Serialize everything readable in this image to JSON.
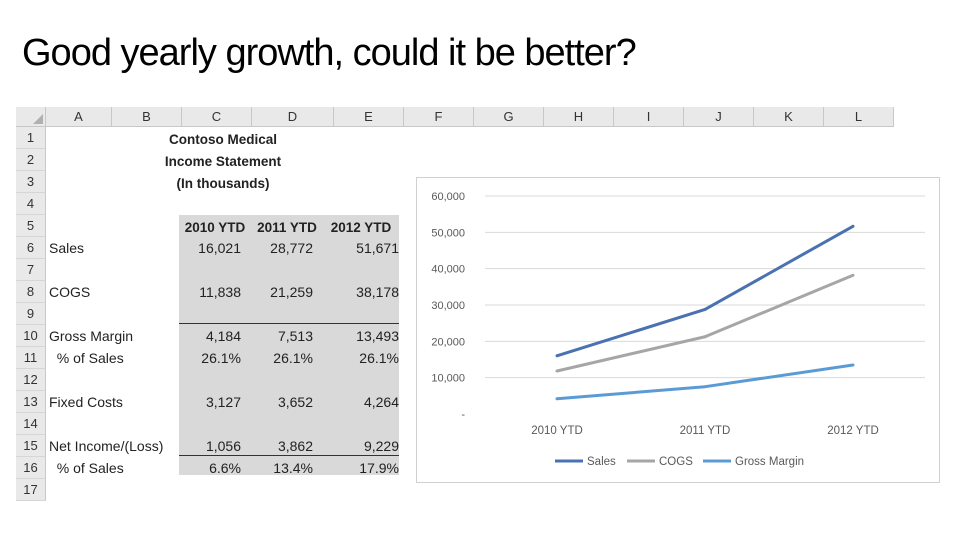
{
  "slide": {
    "title": "Good yearly growth, could it be better?"
  },
  "columns": [
    "A",
    "B",
    "C",
    "D",
    "E",
    "F",
    "G",
    "H",
    "I",
    "J",
    "K",
    "L"
  ],
  "rows": [
    "1",
    "2",
    "3",
    "4",
    "5",
    "6",
    "7",
    "8",
    "9",
    "10",
    "11",
    "12",
    "13",
    "14",
    "15",
    "16",
    "17"
  ],
  "statement": {
    "title1": "Contoso Medical",
    "title2": "Income Statement",
    "title3": "(In thousands)",
    "headers": [
      "2010 YTD",
      "2011 YTD",
      "2012 YTD"
    ],
    "lines": [
      {
        "label": "Sales",
        "values": [
          "16,021",
          "28,772",
          "51,671"
        ]
      },
      {
        "label": "COGS",
        "values": [
          "11,838",
          "21,259",
          "38,178"
        ]
      },
      {
        "label": "Gross Margin",
        "values": [
          "4,184",
          "7,513",
          "13,493"
        ]
      },
      {
        "label": "  % of Sales",
        "values": [
          "26.1%",
          "26.1%",
          "26.1%"
        ]
      },
      {
        "label": "Fixed Costs",
        "values": [
          "3,127",
          "3,652",
          "4,264"
        ]
      },
      {
        "label": "Net Income/(Loss)",
        "values": [
          "1,056",
          "3,862",
          "9,229"
        ]
      },
      {
        "label": "  % of Sales",
        "values": [
          "6.6%",
          "13.4%",
          "17.9%"
        ]
      }
    ]
  },
  "chart_data": {
    "type": "line",
    "categories": [
      "2010 YTD",
      "2011 YTD",
      "2012 YTD"
    ],
    "series": [
      {
        "name": "Sales",
        "values": [
          16021,
          28772,
          51671
        ],
        "color": "#4a72b0"
      },
      {
        "name": "COGS",
        "values": [
          11838,
          21259,
          38178
        ],
        "color": "#a6a6a6"
      },
      {
        "name": "Gross Margin",
        "values": [
          4184,
          7513,
          13493
        ],
        "color": "#5b9bd5"
      }
    ],
    "yticks": [
      "-",
      "10,000",
      "20,000",
      "30,000",
      "40,000",
      "50,000",
      "60,000"
    ],
    "ylim": [
      0,
      60000
    ],
    "grid": true,
    "legend": "bottom"
  }
}
